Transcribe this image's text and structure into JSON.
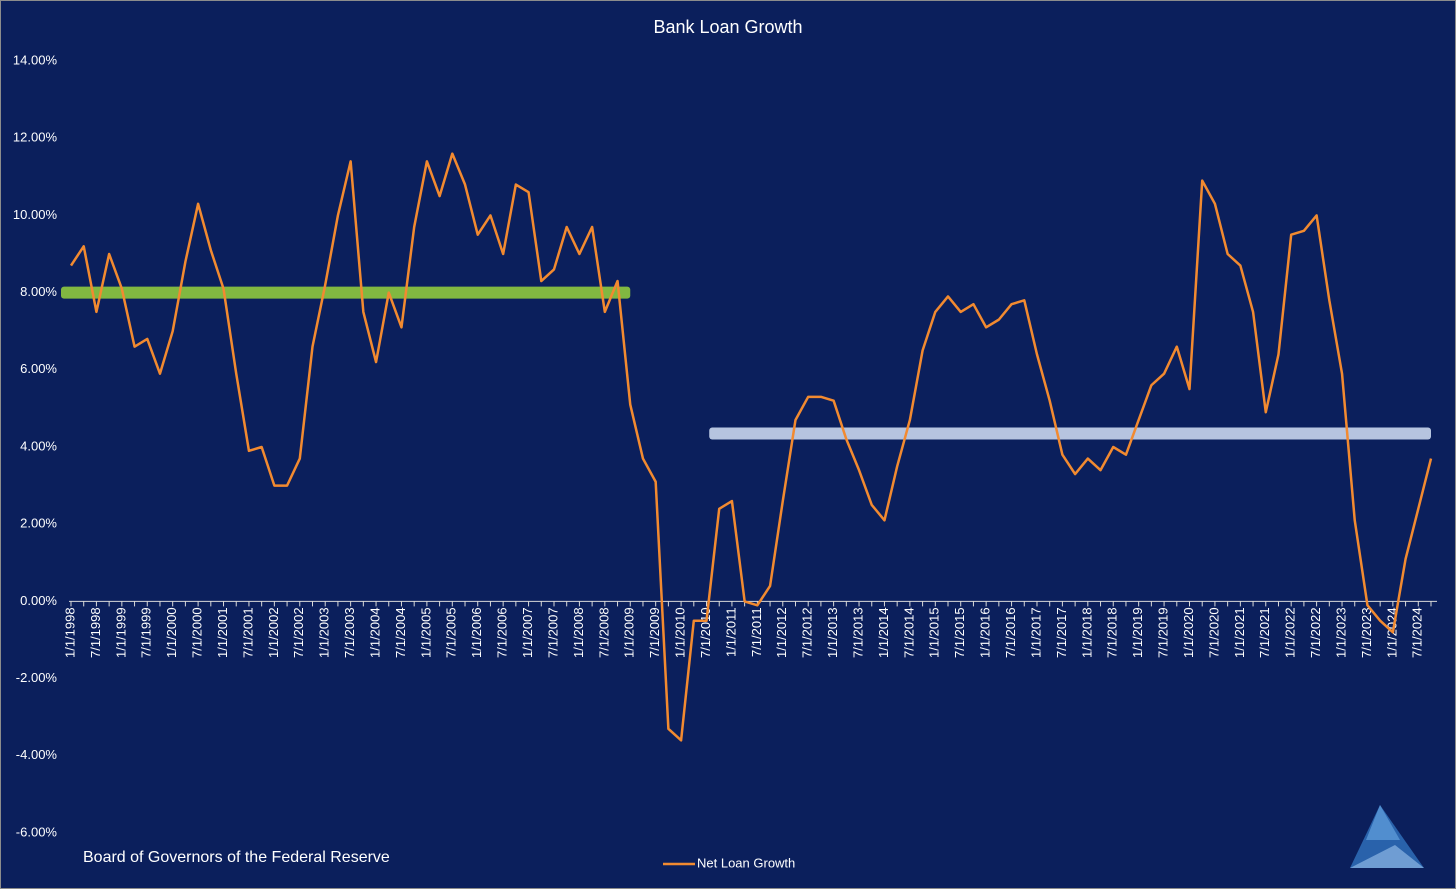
{
  "chart_data": {
    "type": "line",
    "title": "Bank Loan Growth",
    "source": "Board of Governors of the Federal Reserve",
    "categories": [
      "1/1/1998",
      null,
      "7/1/1998",
      null,
      "1/1/1999",
      null,
      "7/1/1999",
      null,
      "1/1/2000",
      null,
      "7/1/2000",
      null,
      "1/1/2001",
      null,
      "7/1/2001",
      null,
      "1/1/2002",
      null,
      "7/1/2002",
      null,
      "1/1/2003",
      null,
      "7/1/2003",
      null,
      "1/1/2004",
      null,
      "7/1/2004",
      null,
      "1/1/2005",
      null,
      "7/1/2005",
      null,
      "1/1/2006",
      null,
      "7/1/2006",
      null,
      "1/1/2007",
      null,
      "7/1/2007",
      null,
      "1/1/2008",
      null,
      "7/1/2008",
      null,
      "1/1/2009",
      null,
      "7/1/2009",
      null,
      "1/1/2010",
      null,
      "7/1/2010",
      null,
      "1/1/2011",
      null,
      "7/1/2011",
      null,
      "1/1/2012",
      null,
      "7/1/2012",
      null,
      "1/1/2013",
      null,
      "7/1/2013",
      null,
      "1/1/2014",
      null,
      "7/1/2014",
      null,
      "1/1/2015",
      null,
      "7/1/2015",
      null,
      "1/1/2016",
      null,
      "7/1/2016",
      null,
      "1/1/2017",
      null,
      "7/1/2017",
      null,
      "1/1/2018",
      null,
      "7/1/2018",
      null,
      "1/1/2019",
      null,
      "7/1/2019",
      null,
      "1/1/2020",
      null,
      "7/1/2020",
      null,
      "1/1/2021",
      null,
      "7/1/2021",
      null,
      "1/1/2022",
      null,
      "7/1/2022",
      null,
      "1/1/2023",
      null,
      "7/1/2023",
      null,
      "1/1/2024",
      null,
      "7/1/2024",
      null
    ],
    "series": [
      {
        "name": "Net Loan Growth",
        "color": "#f28a30",
        "values": [
          8.7,
          9.2,
          7.5,
          9.0,
          8.1,
          6.6,
          6.8,
          5.9,
          7.0,
          8.8,
          10.3,
          9.1,
          8.1,
          5.9,
          3.9,
          4.0,
          3.0,
          3.0,
          3.7,
          6.6,
          8.2,
          10.0,
          11.4,
          7.5,
          6.2,
          8.0,
          7.1,
          9.7,
          11.4,
          10.5,
          11.6,
          10.8,
          9.5,
          10.0,
          9.0,
          10.8,
          10.6,
          8.3,
          8.6,
          9.7,
          9.0,
          9.7,
          7.5,
          8.3,
          5.1,
          3.7,
          3.1,
          -3.3,
          -3.6,
          -0.5,
          -0.5,
          2.4,
          2.6,
          0.0,
          -0.1,
          0.4,
          2.6,
          4.7,
          5.3,
          5.3,
          5.2,
          4.2,
          3.4,
          2.5,
          2.1,
          3.5,
          4.7,
          6.5,
          7.5,
          7.9,
          7.5,
          7.7,
          7.1,
          7.3,
          7.7,
          7.8,
          6.4,
          5.2,
          3.8,
          3.3,
          3.7,
          3.4,
          4.0,
          3.8,
          4.7,
          5.6,
          5.9,
          6.6,
          5.5,
          10.9,
          10.3,
          9.0,
          8.7,
          7.5,
          4.9,
          6.4,
          9.5,
          9.6,
          10.0,
          7.8,
          5.9,
          2.1,
          -0.1,
          -0.5,
          -0.8,
          1.1,
          2.4,
          3.7
        ]
      }
    ],
    "bands": [
      {
        "value": 8,
        "start": 0,
        "end": 44,
        "color": "#8cc63f"
      },
      {
        "value": 4.35,
        "start": 51,
        "end": 107,
        "color": "#c5d3ea"
      }
    ],
    "ylim": [
      -6,
      14
    ],
    "yticks": [
      {
        "value": -6,
        "label": "-6.00%"
      },
      {
        "value": -4,
        "label": "-4.00%"
      },
      {
        "value": -2,
        "label": "-2.00%"
      },
      {
        "value": 0,
        "label": "0.00%"
      },
      {
        "value": 2,
        "label": "2.00%"
      },
      {
        "value": 4,
        "label": "4.00%"
      },
      {
        "value": 6,
        "label": "6.00%"
      },
      {
        "value": 8,
        "label": "8.00%"
      },
      {
        "value": 10,
        "label": "10.00%"
      },
      {
        "value": 12,
        "label": "12.00%"
      },
      {
        "value": 14,
        "label": "14.00%"
      }
    ],
    "grid": false,
    "legend": "bottom"
  }
}
